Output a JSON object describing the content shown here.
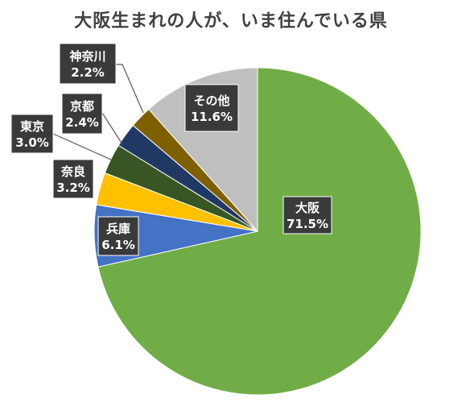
{
  "chart_data": {
    "type": "pie",
    "title": "大阪生まれの人が、いま住んでいる県",
    "start_angle_deg": 0,
    "direction": "clockwise",
    "slices": [
      {
        "label": "大阪",
        "value": 71.5,
        "value_label": "71.5%",
        "color": "#70ad47"
      },
      {
        "label": "兵庫",
        "value": 6.1,
        "value_label": "6.1%",
        "color": "#4472c4"
      },
      {
        "label": "奈良",
        "value": 3.2,
        "value_label": "3.2%",
        "color": "#ffc000"
      },
      {
        "label": "東京",
        "value": 3.0,
        "value_label": "3.0%",
        "color": "#375623"
      },
      {
        "label": "京都",
        "value": 2.4,
        "value_label": "2.4%",
        "color": "#203864"
      },
      {
        "label": "神奈川",
        "value": 2.2,
        "value_label": "2.2%",
        "color": "#7f6000"
      },
      {
        "label": "その他",
        "value": 11.6,
        "value_label": "11.6%",
        "color": "#bfbfbf"
      }
    ]
  }
}
